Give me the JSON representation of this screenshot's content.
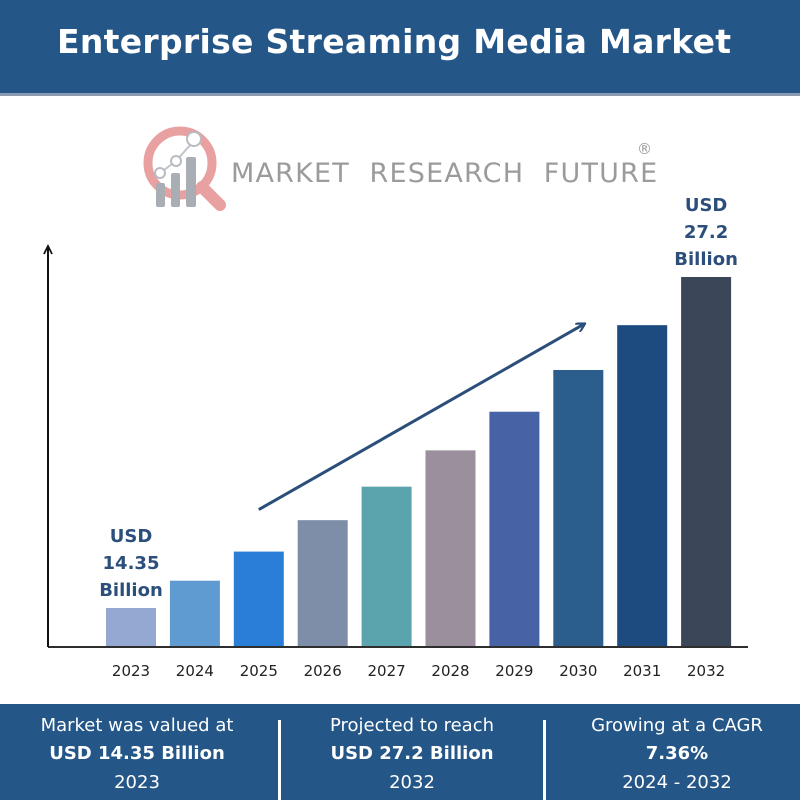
{
  "header": {
    "title": "Enterprise Streaming Media Market"
  },
  "logo": {
    "text": "MARKET  RESEARCH  FUTURE",
    "registered": "®",
    "icon": "magnifier-chart-icon"
  },
  "colors": {
    "brand": "#245687",
    "label": "#2b4f7a",
    "trend_arrow": "#2b4f7a"
  },
  "chart_data": {
    "type": "bar",
    "title": "Enterprise Streaming Media Market",
    "xlabel": "",
    "ylabel": "",
    "unit": "USD Billion",
    "grid": false,
    "categories": [
      "2023",
      "2024",
      "2025",
      "2026",
      "2027",
      "2028",
      "2029",
      "2030",
      "2031",
      "2032"
    ],
    "values": [
      14.35,
      15.41,
      16.54,
      17.76,
      19.06,
      20.47,
      21.97,
      23.59,
      25.33,
      27.2
    ],
    "bar_colors": [
      "#95a8d1",
      "#5f9bd1",
      "#2a7ed6",
      "#7f8ea8",
      "#5ba3ad",
      "#9b8e9d",
      "#4862a6",
      "#2c5e8c",
      "#1d4b80",
      "#3b4658"
    ],
    "annotations": [
      {
        "category": "2023",
        "lines": [
          "USD",
          "14.35",
          "Billion"
        ]
      },
      {
        "category": "2032",
        "lines": [
          "USD",
          "27.2",
          "Billion"
        ]
      }
    ],
    "trend_arrow": {
      "from_category": "2025",
      "to_category": "2030",
      "direction": "up"
    }
  },
  "footer": {
    "stats": [
      {
        "caption": "Market was valued at",
        "value": "USD 14.35 Billion",
        "period": "2023"
      },
      {
        "caption": "Projected to reach",
        "value": "USD 27.2 Billion",
        "period": "2032"
      },
      {
        "caption": "Growing at a CAGR",
        "value": "7.36%",
        "period": "2024 - 2032"
      }
    ]
  }
}
